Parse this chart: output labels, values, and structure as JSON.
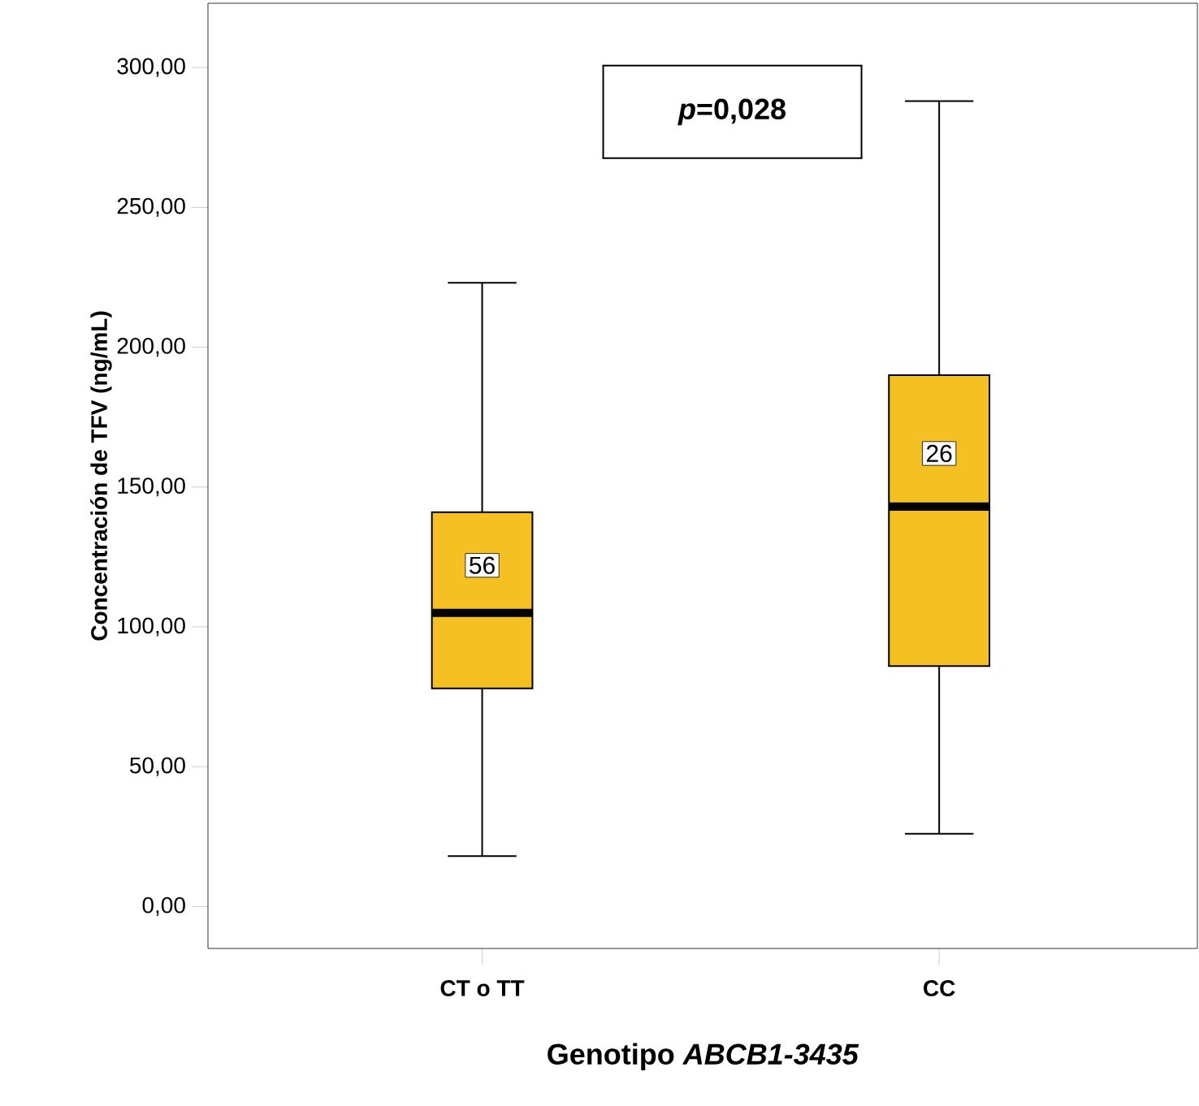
{
  "chart_data": {
    "type": "box",
    "ylabel": "Concentración de TFV (ng/mL)",
    "xlabel": "Genotipo *ABCB1-3435*",
    "categories": [
      "CT o TT",
      "CC"
    ],
    "boxes": [
      {
        "low": 18,
        "q1": 78,
        "median": 105,
        "q3": 141,
        "high": 223
      },
      {
        "low": 26,
        "q1": 86,
        "median": 143,
        "q3": 190,
        "high": 288
      }
    ],
    "color": "#f5c021",
    "ylim": [
      -15,
      323
    ],
    "yticks": [
      {
        "value": 0,
        "label": "0,00"
      },
      {
        "value": 50,
        "label": "50,00"
      },
      {
        "value": 100,
        "label": "100,00"
      },
      {
        "value": 150,
        "label": "150,00"
      },
      {
        "value": 200,
        "label": "200,00"
      },
      {
        "value": 250,
        "label": "250,00"
      },
      {
        "value": 300,
        "label": "300,00"
      }
    ],
    "annotations": [
      {
        "text": "56",
        "x": "CT o TT",
        "y": 122
      },
      {
        "text": "26",
        "x": "CC",
        "y": 162
      },
      "*p*=0,028"
    ]
  }
}
